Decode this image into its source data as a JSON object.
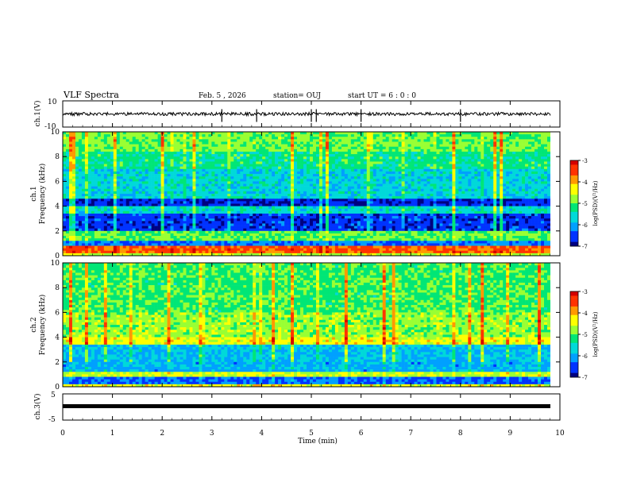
{
  "header": {
    "title": "VLF Spectra",
    "date": "Feb. 5 , 2026",
    "station": "station= OUJ",
    "start": "start UT =  6 : 0 : 0"
  },
  "colorbar": {
    "label": "log(PSD)(V²/Hz)",
    "ticks": [
      "-3",
      "-4",
      "-5",
      "-6",
      "-7"
    ],
    "colors": [
      "#ffffff",
      "#d50000",
      "#ff3300",
      "#ff9900",
      "#ffff00",
      "#99ff33",
      "#00e676",
      "#00d9d9",
      "#00a0ff",
      "#0033ff",
      "#000080"
    ]
  },
  "chart_data": [
    {
      "type": "line",
      "ylabel": "ch.1(V)",
      "ylim": [
        -10,
        10
      ],
      "yticks": [
        "10",
        "-10"
      ],
      "xlim": [
        0,
        10
      ],
      "description_series": "waveform",
      "approx_level": 0,
      "color": "#000000"
    },
    {
      "type": "heatmap",
      "ylabel": "ch.1",
      "ylabel2": "Frequency (kHz)",
      "ylim": [
        0,
        10
      ],
      "yticks": [
        "0",
        "2",
        "4",
        "6",
        "8",
        "10"
      ],
      "xlim": [
        0,
        10
      ],
      "zlim": [
        -7,
        -3
      ]
    },
    {
      "type": "heatmap",
      "ylabel": "ch.2",
      "ylabel2": "Frequency (kHz)",
      "ylim": [
        0,
        10
      ],
      "yticks": [
        "0",
        "2",
        "4",
        "6",
        "8",
        "10"
      ],
      "xlim": [
        0,
        10
      ],
      "zlim": [
        -7,
        -3
      ]
    },
    {
      "type": "line",
      "ylabel": "ch.3(V)",
      "ylim": [
        -5,
        5
      ],
      "yticks": [
        "5",
        "-5"
      ],
      "xlim": [
        0,
        10
      ],
      "approx_level": 0,
      "color": "#000000"
    }
  ],
  "xaxis": {
    "label": "Time (min)",
    "ticks": [
      "0",
      "1",
      "2",
      "3",
      "4",
      "5",
      "6",
      "7",
      "8",
      "9",
      "10"
    ]
  }
}
